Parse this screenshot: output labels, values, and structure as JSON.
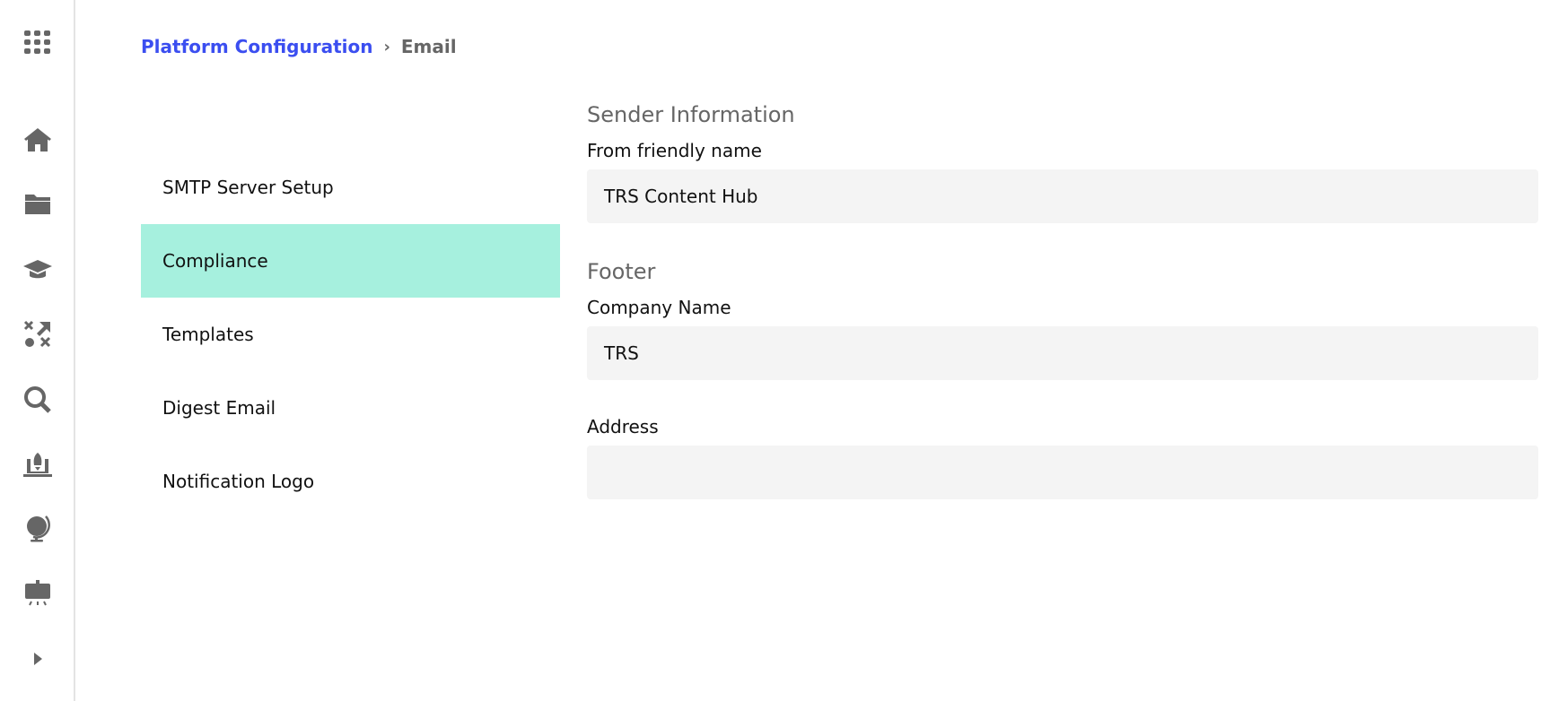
{
  "sidebar": {
    "icons": [
      "apps-grid-icon",
      "home-icon",
      "folder-icon",
      "graduation-cap-icon",
      "strategy-icon",
      "search-icon",
      "rocket-laptop-icon",
      "globe-icon",
      "presentation-board-icon",
      "expand-arrow-icon"
    ]
  },
  "breadcrumb": {
    "parent": "Platform Configuration",
    "separator": "›",
    "current": "Email"
  },
  "nav": {
    "items": [
      {
        "label": "SMTP Server Setup"
      },
      {
        "label": "Compliance",
        "active": true
      },
      {
        "label": "Templates"
      },
      {
        "label": "Digest Email"
      },
      {
        "label": "Notification Logo"
      }
    ]
  },
  "form": {
    "sender_section": "Sender Information",
    "from_name_label": "From friendly name",
    "from_name_value": "TRS Content Hub",
    "footer_section": "Footer",
    "company_label": "Company Name",
    "company_value": "TRS",
    "address_label": "Address",
    "address_value": ""
  },
  "colors": {
    "accent": "#3b4ef0",
    "active_nav": "#a6f0de",
    "input_bg": "#f4f4f4"
  }
}
